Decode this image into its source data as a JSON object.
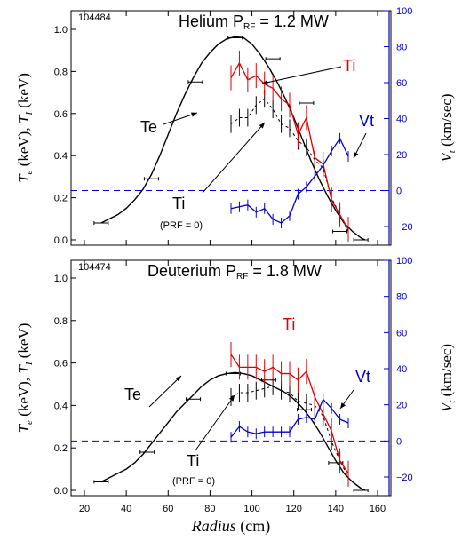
{
  "chart_data": [
    {
      "type": "line",
      "shot": "104484",
      "title_main": "Helium",
      "title_P": "P",
      "title_sub": "RF",
      "title_val": " = 1.2 MW",
      "ylabel_left": "T_e (keV), T_I (keV)",
      "ylabel_left_parts": {
        "Te": "T",
        "e": "e",
        "mid": " (keV),  ",
        "Ti": "T",
        "i": "I",
        "end": " (keV)"
      },
      "ylabel_right": "V_t (km/sec)",
      "ylabel_right_parts": {
        "V": "V",
        "t": "t",
        "end": " (km/sec)"
      },
      "ylim_left": [
        0,
        1.05
      ],
      "yticks_left": [
        "0.0",
        "0.2",
        "0.4",
        "0.6",
        "0.8",
        "1.0"
      ],
      "ylim_right": [
        -30,
        100
      ],
      "yticks_right": [
        "−20",
        "0",
        "20",
        "40",
        "60",
        "80",
        "100"
      ],
      "xlim": [
        20,
        160
      ],
      "colors": {
        "Te": "#000000",
        "Ti": "#e00000",
        "Ti0": "#000000",
        "Vt": "#0000d0"
      },
      "annotations": {
        "Te": "Te",
        "Ti": "Ti",
        "Vt": "Vt",
        "Ti0": "Ti",
        "Ti0_note": "(PRF = 0)"
      },
      "series": [
        {
          "name": "Te",
          "x": [
            28,
            32,
            36,
            40,
            44,
            48,
            52,
            56,
            60,
            64,
            68,
            72,
            76,
            80,
            84,
            88,
            92,
            96,
            100,
            104,
            108,
            112,
            116,
            120,
            124,
            128,
            132,
            136,
            140,
            144,
            148,
            152,
            154
          ],
          "values": [
            0.08,
            0.1,
            0.12,
            0.15,
            0.19,
            0.24,
            0.31,
            0.4,
            0.5,
            0.6,
            0.69,
            0.77,
            0.84,
            0.89,
            0.93,
            0.955,
            0.965,
            0.96,
            0.93,
            0.88,
            0.82,
            0.75,
            0.67,
            0.58,
            0.48,
            0.38,
            0.29,
            0.21,
            0.14,
            0.08,
            0.04,
            0.01,
            0.0
          ]
        },
        {
          "name": "Te points",
          "x": [
            28,
            52,
            73,
            92,
            110,
            126,
            142,
            152
          ],
          "values": [
            0.08,
            0.29,
            0.75,
            0.96,
            0.86,
            0.65,
            0.04,
            0.0
          ]
        },
        {
          "name": "Ti",
          "x": [
            90,
            94,
            98,
            102,
            106,
            110,
            114,
            118,
            122,
            126,
            130,
            134,
            138,
            142,
            146
          ],
          "values": [
            0.77,
            0.84,
            0.76,
            0.78,
            0.74,
            0.72,
            0.67,
            0.64,
            0.5,
            0.58,
            0.39,
            0.36,
            0.19,
            0.12,
            0.05
          ]
        },
        {
          "name": "Ti(PRF=0)",
          "x": [
            90,
            94,
            98,
            102,
            106,
            110,
            114,
            118,
            122,
            126,
            130,
            134,
            138,
            142,
            146
          ],
          "values": [
            0.55,
            0.58,
            0.58,
            0.64,
            0.67,
            0.62,
            0.55,
            0.53,
            0.47,
            0.44,
            0.38,
            0.34,
            0.2,
            0.12,
            0.04
          ]
        },
        {
          "name": "Vt",
          "x": [
            90,
            94,
            98,
            102,
            106,
            110,
            114,
            118,
            122,
            126,
            130,
            134,
            138,
            142,
            146
          ],
          "values": [
            -10,
            -9,
            -8,
            -12,
            -10,
            -16,
            -18,
            -14,
            -2,
            2,
            8,
            14,
            22,
            29,
            19
          ]
        }
      ]
    },
    {
      "type": "line",
      "shot": "104474",
      "title_main": "Deuterium",
      "title_P": "P",
      "title_sub": "RF",
      "title_val": " = 1.8 MW",
      "ylabel_left": "T_e (keV), T_I (keV)",
      "ylabel_left_parts": {
        "Te": "T",
        "e": "e",
        "mid": " (keV),  ",
        "Ti": "T",
        "i": "I",
        "end": " (keV)"
      },
      "ylabel_right": "V_t (km/sec)",
      "ylabel_right_parts": {
        "V": "V",
        "t": "t",
        "end": " (km/sec)"
      },
      "ylim_left": [
        0,
        1.05
      ],
      "yticks_left": [
        "0.0",
        "0.2",
        "0.4",
        "0.6",
        "0.8",
        "1.0"
      ],
      "ylim_right": [
        -30,
        100
      ],
      "yticks_right": [
        "−20",
        "0",
        "20",
        "40",
        "60",
        "80",
        "100"
      ],
      "xlim": [
        20,
        160
      ],
      "xticks": [
        "20",
        "40",
        "60",
        "80",
        "100",
        "120",
        "140",
        "160"
      ],
      "xlabel_italic": "Radius",
      "xlabel_unit": " (cm)",
      "colors": {
        "Te": "#000000",
        "Ti": "#e00000",
        "Ti0": "#000000",
        "Vt": "#0000d0"
      },
      "annotations": {
        "Te": "Te",
        "Ti": "Ti",
        "Vt": "Vt",
        "Ti0": "Ti",
        "Ti0_note": "(PRF = 0)"
      },
      "series": [
        {
          "name": "Te",
          "x": [
            28,
            32,
            36,
            40,
            44,
            48,
            52,
            56,
            60,
            64,
            68,
            72,
            76,
            80,
            84,
            88,
            92,
            96,
            100,
            104,
            108,
            112,
            116,
            120,
            124,
            128,
            132,
            136,
            140,
            144,
            148,
            152,
            154
          ],
          "values": [
            0.04,
            0.06,
            0.08,
            0.1,
            0.13,
            0.17,
            0.22,
            0.27,
            0.32,
            0.37,
            0.41,
            0.45,
            0.49,
            0.52,
            0.54,
            0.55,
            0.555,
            0.55,
            0.54,
            0.52,
            0.5,
            0.48,
            0.46,
            0.43,
            0.39,
            0.34,
            0.28,
            0.21,
            0.14,
            0.08,
            0.04,
            0.01,
            0.0
          ]
        },
        {
          "name": "Te points",
          "x": [
            28,
            50,
            72,
            91,
            108,
            125,
            140,
            152
          ],
          "values": [
            0.04,
            0.18,
            0.43,
            0.55,
            0.52,
            0.38,
            0.13,
            0.0
          ]
        },
        {
          "name": "Ti",
          "x": [
            90,
            94,
            98,
            102,
            106,
            110,
            114,
            118,
            122,
            126,
            130,
            134,
            138,
            142,
            146
          ],
          "values": [
            0.64,
            0.58,
            0.58,
            0.58,
            0.56,
            0.58,
            0.55,
            0.55,
            0.52,
            0.56,
            0.44,
            0.36,
            0.28,
            0.14,
            0.08
          ]
        },
        {
          "name": "Ti(PRF=0)",
          "x": [
            90,
            94,
            98,
            102,
            106,
            110,
            114,
            118,
            122,
            126,
            130,
            134,
            138,
            142,
            146
          ],
          "values": [
            0.44,
            0.46,
            0.46,
            0.47,
            0.48,
            0.49,
            0.47,
            0.46,
            0.42,
            0.41,
            0.4,
            0.35,
            0.23,
            0.14,
            0.06
          ]
        },
        {
          "name": "Vt",
          "x": [
            90,
            94,
            98,
            102,
            106,
            110,
            114,
            118,
            122,
            126,
            130,
            134,
            138,
            142,
            146
          ],
          "values": [
            2,
            8,
            5,
            4,
            5,
            5,
            5,
            5,
            12,
            13,
            12,
            23,
            18,
            12,
            10
          ]
        }
      ]
    }
  ]
}
